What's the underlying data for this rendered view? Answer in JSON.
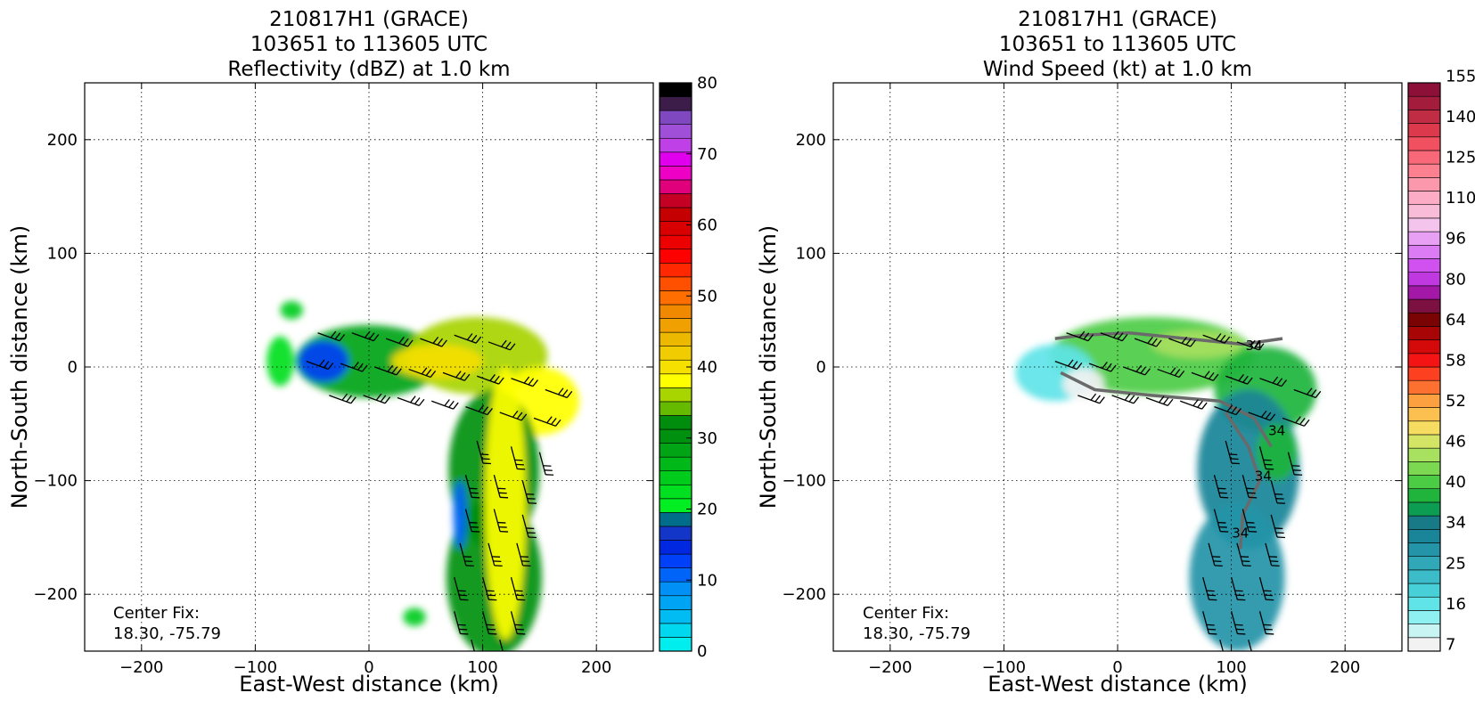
{
  "chart_data": [
    {
      "type": "heatmap",
      "title_lines": [
        "210817H1 (GRACE)",
        "103651 to 113605 UTC",
        "Reflectivity (dBZ) at 1.0 km"
      ],
      "xlabel": "East-West distance (km)",
      "ylabel": "North-South distance (km)",
      "xlim": [
        -250,
        250
      ],
      "ylim": [
        -250,
        250
      ],
      "xticks": [
        -200,
        -100,
        0,
        100,
        200
      ],
      "yticks": [
        -200,
        -100,
        0,
        100,
        200
      ],
      "xtick_labels": [
        "−200",
        "−100",
        "0",
        "100",
        "200"
      ],
      "ytick_labels": [
        "−200",
        "−100",
        "0",
        "100",
        "200"
      ],
      "grid": true,
      "annotation": [
        "Center Fix:",
        "18.30, -75.79"
      ],
      "colorbar": {
        "min": 0,
        "max": 80,
        "tick_values": [
          0,
          10,
          20,
          30,
          40,
          50,
          60,
          70,
          80
        ],
        "tick_labels": [
          "0",
          "10",
          "20",
          "30",
          "40",
          "50",
          "60",
          "70",
          "80"
        ],
        "colors": [
          "#00eeee",
          "#00d8f0",
          "#00bcf2",
          "#00a4f4",
          "#0090f6",
          "#0064f8",
          "#0040f8",
          "#0028e0",
          "#1436c8",
          "#006e8a",
          "#00ee22",
          "#00e020",
          "#00cc1c",
          "#00b818",
          "#00a414",
          "#009010",
          "#008c0c",
          "#66bb00",
          "#a8d400",
          "#ffff00",
          "#f6e000",
          "#f0cc00",
          "#ecb800",
          "#f0a000",
          "#f08800",
          "#ff6e00",
          "#ff5000",
          "#ff2800",
          "#ff0000",
          "#ec0000",
          "#d80000",
          "#c40000",
          "#c40024",
          "#e0007c",
          "#ee00c4",
          "#e000ee",
          "#c040e8",
          "#a050d8",
          "#8048c0",
          "#3c1c48",
          "#000000"
        ]
      },
      "features": [
        {
          "shape": "blob",
          "cx": 0,
          "cy": 5,
          "rx": 65,
          "ry": 32,
          "value": 28
        },
        {
          "shape": "blob",
          "cx": 95,
          "cy": 10,
          "rx": 62,
          "ry": 34,
          "value": 35
        },
        {
          "shape": "blob",
          "cx": 150,
          "cy": -30,
          "rx": 35,
          "ry": 30,
          "value": 37
        },
        {
          "shape": "blob",
          "cx": 110,
          "cy": -90,
          "rx": 40,
          "ry": 70,
          "value": 30
        },
        {
          "shape": "blob",
          "cx": 110,
          "cy": -185,
          "rx": 42,
          "ry": 70,
          "value": 30
        },
        {
          "shape": "blob",
          "cx": 120,
          "cy": -120,
          "rx": 18,
          "ry": 120,
          "value": 38
        },
        {
          "shape": "blob",
          "cx": 60,
          "cy": 5,
          "rx": 40,
          "ry": 15,
          "value": 40
        },
        {
          "shape": "blob",
          "cx": -40,
          "cy": 5,
          "rx": 22,
          "ry": 18,
          "value": 11
        },
        {
          "shape": "blob",
          "cx": -78,
          "cy": 5,
          "rx": 12,
          "ry": 22,
          "value": 22
        },
        {
          "shape": "blob",
          "cx": -68,
          "cy": 50,
          "rx": 10,
          "ry": 8,
          "value": 24
        },
        {
          "shape": "blob",
          "cx": 40,
          "cy": -220,
          "rx": 10,
          "ry": 8,
          "value": 24
        },
        {
          "shape": "blob",
          "cx": 80,
          "cy": -130,
          "rx": 6,
          "ry": 30,
          "value": 10
        }
      ]
    },
    {
      "type": "heatmap",
      "title_lines": [
        "210817H1 (GRACE)",
        "103651 to 113605 UTC",
        "Wind Speed (kt) at 1.0 km"
      ],
      "xlabel": "East-West distance (km)",
      "ylabel": "North-South distance (km)",
      "xlim": [
        -250,
        250
      ],
      "ylim": [
        -250,
        250
      ],
      "xticks": [
        -200,
        -100,
        0,
        100,
        200
      ],
      "yticks": [
        -200,
        -100,
        0,
        100,
        200
      ],
      "xtick_labels": [
        "−200",
        "−100",
        "0",
        "100",
        "200"
      ],
      "ytick_labels": [
        "−200",
        "−100",
        "0",
        "100",
        "200"
      ],
      "grid": true,
      "annotation": [
        "Center Fix:",
        "18.30, -75.79"
      ],
      "contour_label": "34",
      "colorbar": {
        "tick_labels": [
          "7",
          "16",
          "25",
          "34",
          "40",
          "46",
          "52",
          "58",
          "64",
          "80",
          "96",
          "110",
          "125",
          "140",
          "155"
        ],
        "colors": [
          "#f2f2f2",
          "#c8f4f4",
          "#8ef0f0",
          "#60e4e8",
          "#48d0d8",
          "#3cbcc8",
          "#30a8b8",
          "#2494a8",
          "#1a8498",
          "#187a86",
          "#0c9c52",
          "#20b43c",
          "#4ccc44",
          "#7cd850",
          "#a8e060",
          "#d4e464",
          "#f6dc60",
          "#fcc050",
          "#fca040",
          "#fc7030",
          "#fc4020",
          "#f41414",
          "#d40a0a",
          "#a80606",
          "#7a0404",
          "#7c1040",
          "#a418a8",
          "#c038e0",
          "#d050f0",
          "#dc7cf4",
          "#e8a0f4",
          "#f4c4ec",
          "#f8bcd8",
          "#fcacc4",
          "#fc98ac",
          "#fc8090",
          "#f86878",
          "#f05060",
          "#dc3a4c",
          "#c02c44",
          "#a41c3c",
          "#8c1038"
        ]
      },
      "features": [
        {
          "shape": "blob",
          "cx": 30,
          "cy": 10,
          "rx": 90,
          "ry": 34,
          "value": 40
        },
        {
          "shape": "blob",
          "cx": 130,
          "cy": -20,
          "rx": 45,
          "ry": 38,
          "value": 38
        },
        {
          "shape": "blob",
          "cx": 115,
          "cy": -90,
          "rx": 45,
          "ry": 70,
          "value": 30
        },
        {
          "shape": "blob",
          "cx": 105,
          "cy": -185,
          "rx": 42,
          "ry": 65,
          "value": 28
        },
        {
          "shape": "blob",
          "cx": 140,
          "cy": -75,
          "rx": 18,
          "ry": 25,
          "value": 38
        },
        {
          "shape": "blob",
          "cx": -55,
          "cy": -5,
          "rx": 35,
          "ry": 25,
          "value": 16
        },
        {
          "shape": "blob",
          "cx": -30,
          "cy": -15,
          "rx": 18,
          "ry": 14,
          "value": 7
        },
        {
          "shape": "blob",
          "cx": 70,
          "cy": 20,
          "rx": 40,
          "ry": 12,
          "value": 44
        }
      ],
      "contours": [
        [
          [
            -55,
            25
          ],
          [
            -30,
            28
          ],
          [
            10,
            30
          ],
          [
            60,
            25
          ],
          [
            110,
            20
          ],
          [
            145,
            25
          ]
        ],
        [
          [
            -50,
            -5
          ],
          [
            -20,
            -20
          ],
          [
            30,
            -25
          ],
          [
            90,
            -30
          ],
          [
            120,
            -45
          ],
          [
            135,
            -70
          ]
        ],
        [
          [
            95,
            -40
          ],
          [
            115,
            -70
          ],
          [
            125,
            -100
          ],
          [
            110,
            -130
          ],
          [
            108,
            -160
          ]
        ]
      ],
      "contour_label_points": [
        [
          120,
          15
        ],
        [
          140,
          -60
        ],
        [
          128,
          -100
        ],
        [
          108,
          -150
        ]
      ]
    }
  ],
  "wind_barbs": [
    {
      "x": -45,
      "y": 30
    },
    {
      "x": -15,
      "y": 30
    },
    {
      "x": 15,
      "y": 25
    },
    {
      "x": 45,
      "y": 25
    },
    {
      "x": 75,
      "y": 28
    },
    {
      "x": 105,
      "y": 22
    },
    {
      "x": -55,
      "y": 5
    },
    {
      "x": -25,
      "y": 3
    },
    {
      "x": 5,
      "y": 0
    },
    {
      "x": 35,
      "y": -2
    },
    {
      "x": 65,
      "y": -5
    },
    {
      "x": 95,
      "y": -8
    },
    {
      "x": 125,
      "y": -10
    },
    {
      "x": 155,
      "y": -20
    },
    {
      "x": -35,
      "y": -25
    },
    {
      "x": -5,
      "y": -25
    },
    {
      "x": 25,
      "y": -27
    },
    {
      "x": 55,
      "y": -30
    },
    {
      "x": 85,
      "y": -35
    },
    {
      "x": 115,
      "y": -40
    },
    {
      "x": 145,
      "y": -45
    },
    {
      "x": 95,
      "y": -65
    },
    {
      "x": 125,
      "y": -70
    },
    {
      "x": 150,
      "y": -75
    },
    {
      "x": 85,
      "y": -95
    },
    {
      "x": 110,
      "y": -95
    },
    {
      "x": 135,
      "y": -100
    },
    {
      "x": 85,
      "y": -125
    },
    {
      "x": 110,
      "y": -125
    },
    {
      "x": 135,
      "y": -130
    },
    {
      "x": 80,
      "y": -155
    },
    {
      "x": 105,
      "y": -155
    },
    {
      "x": 130,
      "y": -155
    },
    {
      "x": 75,
      "y": -185
    },
    {
      "x": 100,
      "y": -185
    },
    {
      "x": 125,
      "y": -185
    },
    {
      "x": 75,
      "y": -215
    },
    {
      "x": 100,
      "y": -215
    },
    {
      "x": 125,
      "y": -215
    },
    {
      "x": 90,
      "y": -240
    },
    {
      "x": 115,
      "y": -240
    }
  ]
}
